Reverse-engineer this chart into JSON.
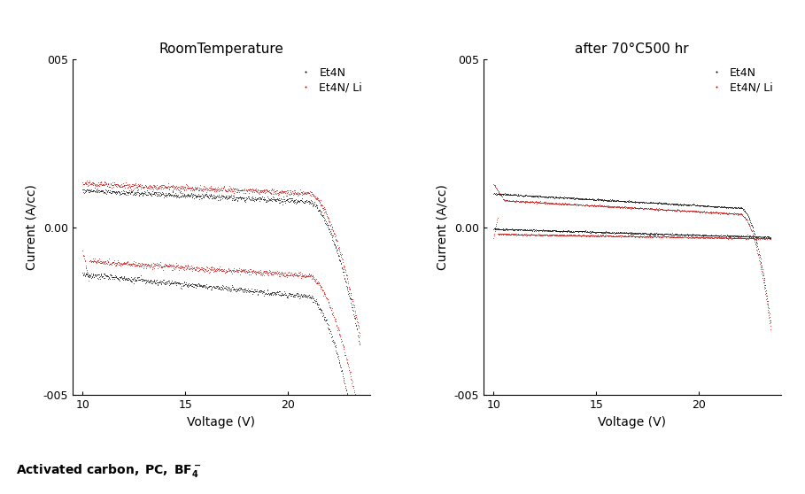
{
  "title_left": "RoomTemperature",
  "title_right": "after 70°C500 hr",
  "xlabel": "Voltage (V)",
  "ylabel": "Current (A/cc)",
  "xlim": [
    9.5,
    24.0
  ],
  "ylim": [
    -0.05,
    0.05
  ],
  "xticks": [
    10,
    15,
    20
  ],
  "ytick_labels": [
    "-005",
    "0.00",
    "005"
  ],
  "ytick_vals": [
    -0.05,
    0.0,
    0.05
  ],
  "legend_labels": [
    "Et4N",
    "Et4N/ Li"
  ],
  "legend_colors": [
    "#000000",
    "#cc0000"
  ],
  "bg_color": "#ffffff",
  "footnote": "Activated carbon, PC, BF₄⁻"
}
